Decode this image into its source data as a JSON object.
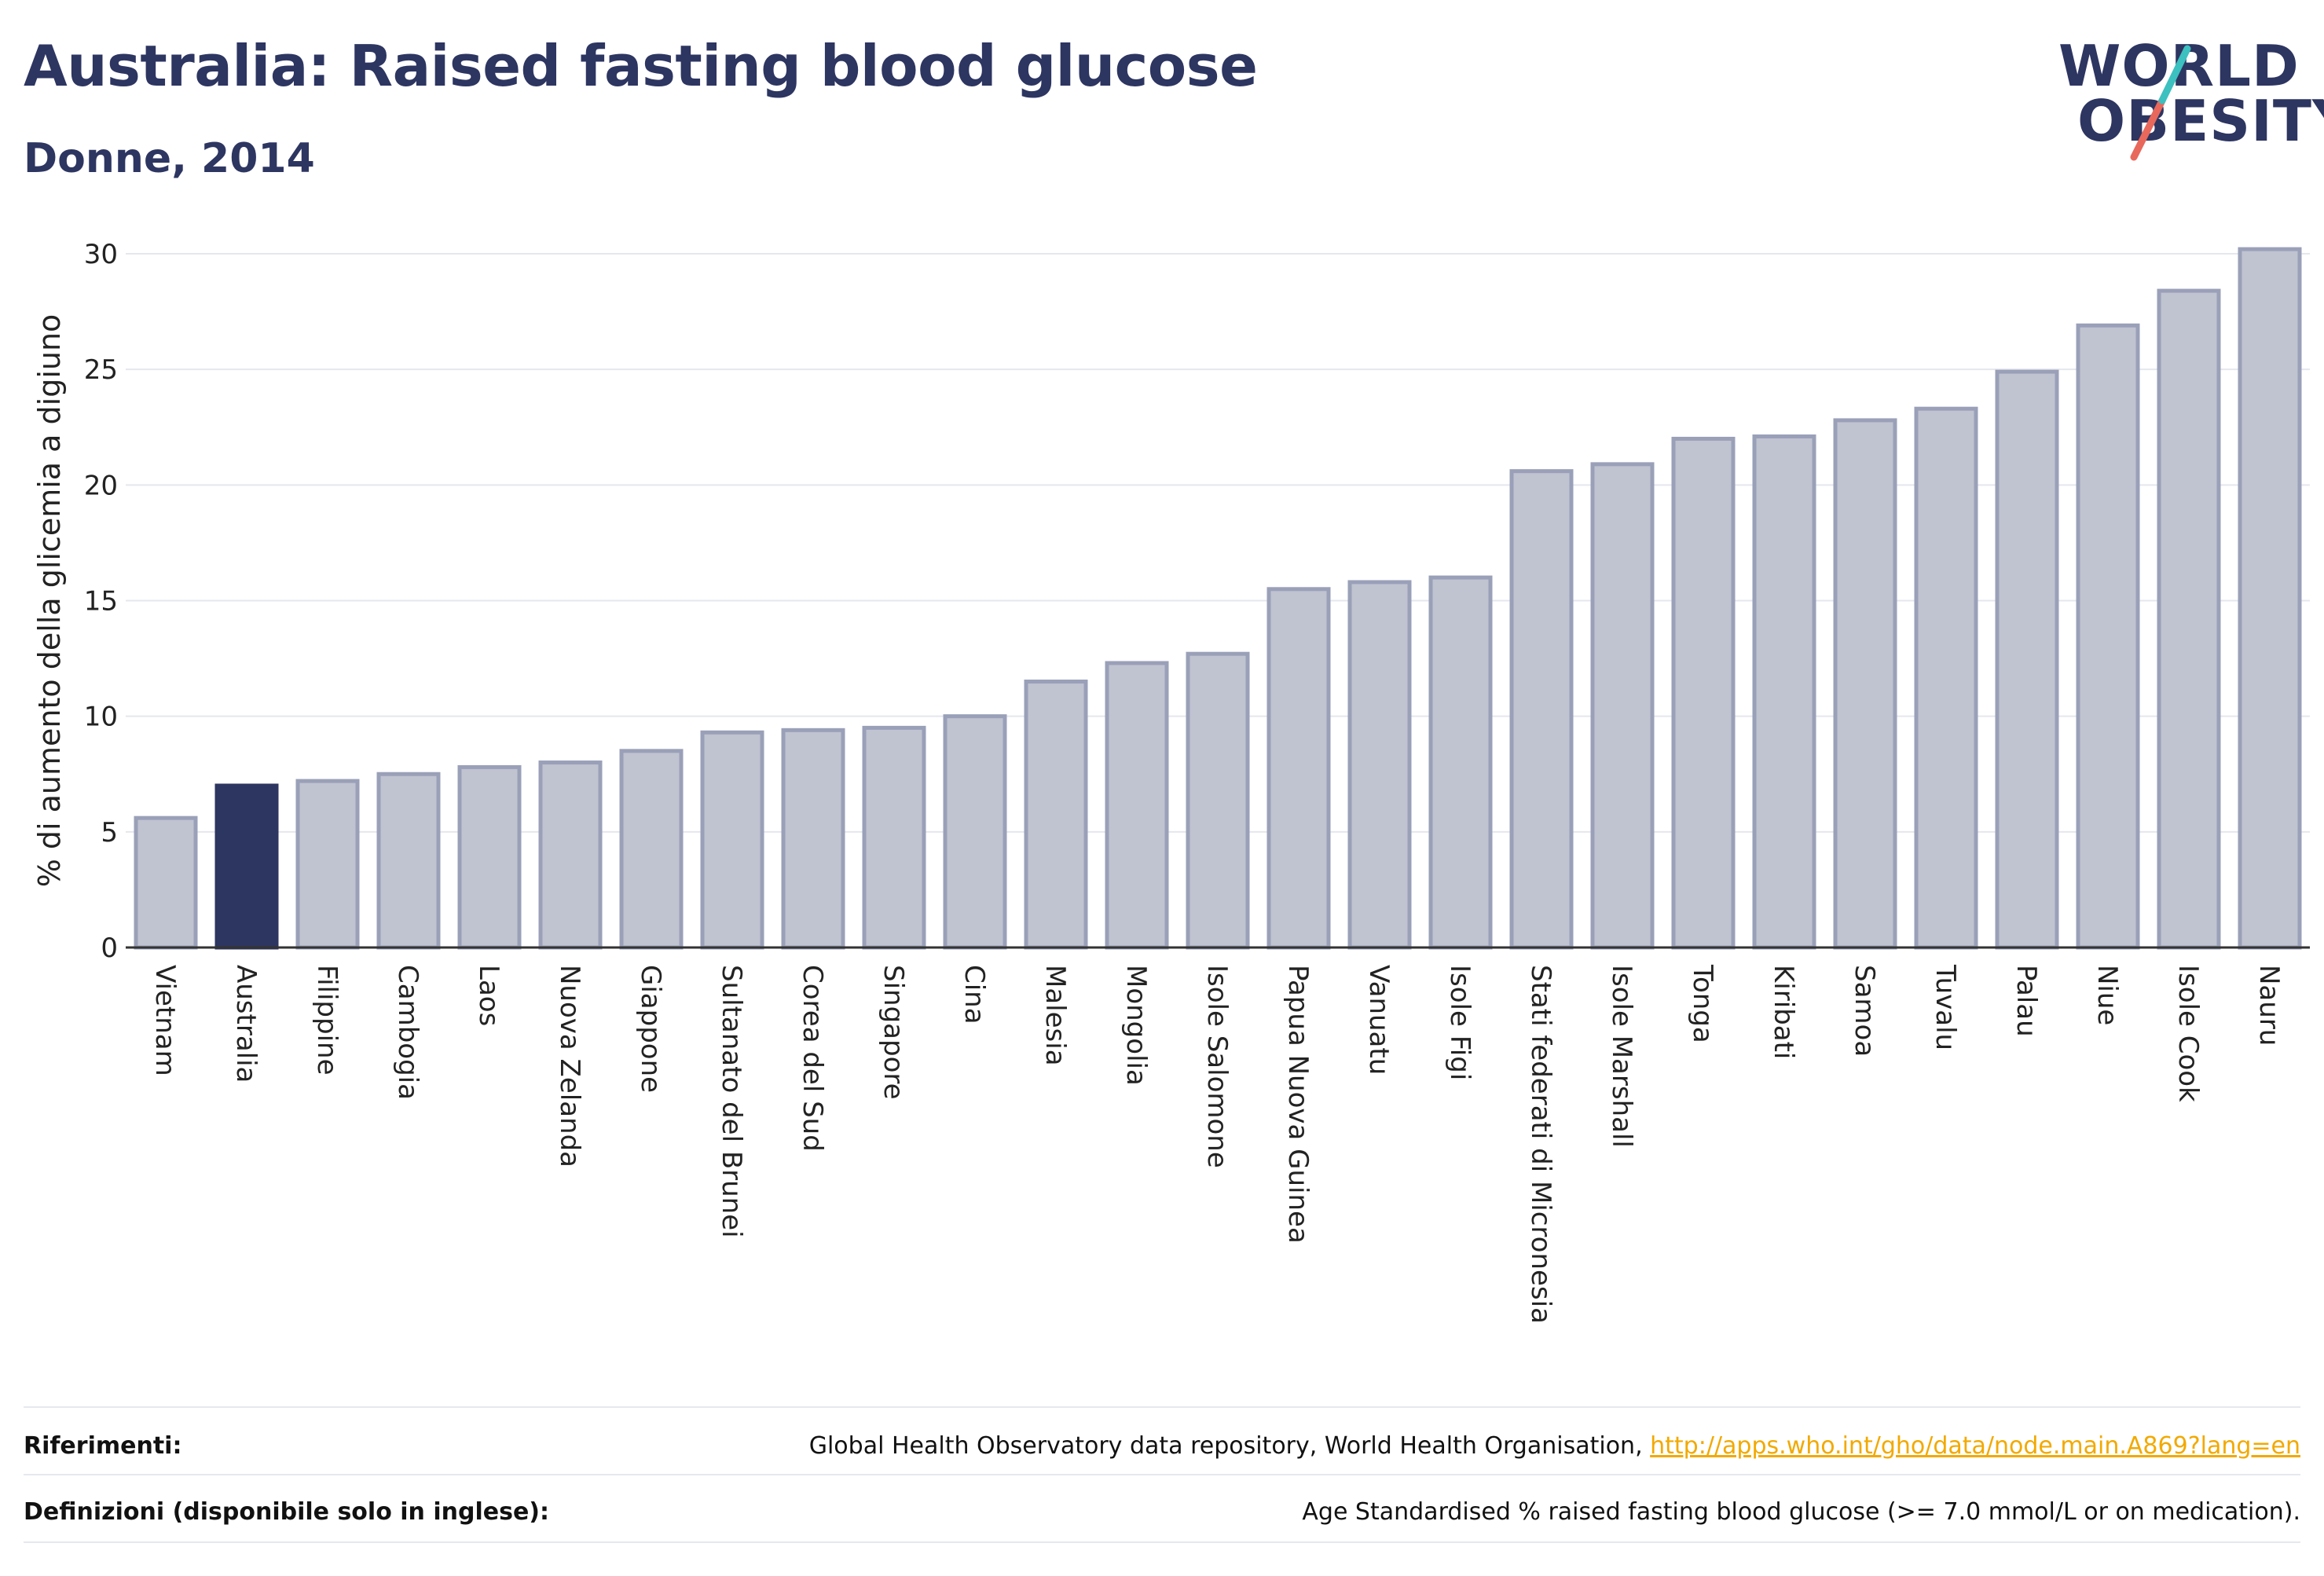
{
  "header": {
    "title": "Australia: Raised fasting blood glucose",
    "subtitle": "Donne, 2014",
    "logo_line1": "WORLD",
    "logo_line2": "OBESITY"
  },
  "colors": {
    "highlight": "#2d3561",
    "bar_fill": "#c0c3d0",
    "bar_stroke": "#9aa0b8",
    "logo_red": "#e8685c",
    "logo_teal": "#3cc0c0"
  },
  "chart_data": {
    "type": "bar",
    "ylabel": "% di aumento della glicemia a digiuno",
    "ylim": [
      0,
      30
    ],
    "yticks": [
      0,
      5,
      10,
      15,
      20,
      25,
      30
    ],
    "grid": true,
    "highlight_category": "Australia",
    "categories": [
      "Vietnam",
      "Australia",
      "Filippine",
      "Cambogia",
      "Laos",
      "Nuova Zelanda",
      "Giappone",
      "Sultanato del Brunei",
      "Corea del Sud",
      "Singapore",
      "Cina",
      "Malesia",
      "Mongolia",
      "Isole Salomone",
      "Papua Nuova Guinea",
      "Vanuatu",
      "Isole Figi",
      "Stati federati di Micronesia",
      "Isole Marshall",
      "Tonga",
      "Kiribati",
      "Samoa",
      "Tuvalu",
      "Palau",
      "Niue",
      "Isole Cook",
      "Nauru"
    ],
    "values": [
      5.6,
      7.0,
      7.2,
      7.5,
      7.8,
      8.0,
      8.5,
      9.3,
      9.4,
      9.5,
      10.0,
      11.5,
      12.3,
      12.7,
      15.5,
      15.8,
      16.0,
      20.6,
      20.9,
      22.0,
      22.1,
      22.8,
      23.3,
      24.9,
      26.9,
      28.4,
      30.2
    ]
  },
  "footer": {
    "references_label": "Riferimenti:",
    "references_text": "Global Health Observatory data repository, World Health Organisation, ",
    "references_link": "http://apps.who.int/gho/data/node.main.A869?lang=en",
    "definitions_label": "Definizioni (disponibile solo in inglese):",
    "definitions_text": "Age Standardised % raised fasting blood glucose (>= 7.0 mmol/L or on medication)."
  }
}
